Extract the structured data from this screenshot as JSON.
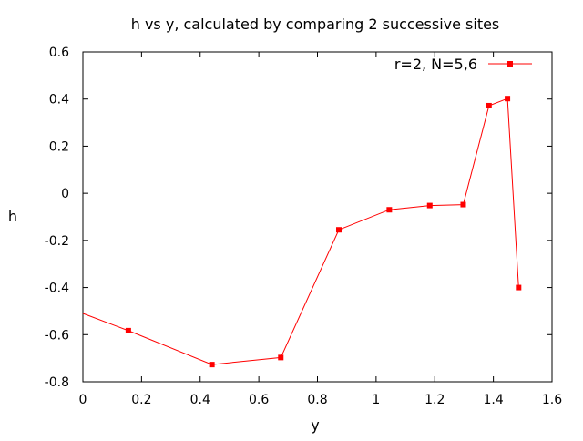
{
  "chart_data": {
    "type": "line",
    "title": "h vs y, calculated by comparing 2 successive sites",
    "xlabel": "y",
    "ylabel": "h",
    "xlim": [
      0,
      1.6
    ],
    "ylim": [
      -0.8,
      0.6
    ],
    "x_ticks": [
      0,
      0.2,
      0.4,
      0.6,
      0.8,
      1,
      1.2,
      1.4,
      1.6
    ],
    "x_tick_labels": [
      "0",
      "0.2",
      "0.4",
      "0.6",
      "0.8",
      "1",
      "1.2",
      "1.4",
      "1.6"
    ],
    "y_ticks": [
      -0.8,
      -0.6,
      -0.4,
      -0.2,
      0,
      0.2,
      0.4,
      0.6
    ],
    "y_tick_labels": [
      "-0.8",
      "-0.6",
      "-0.4",
      "-0.2",
      "0",
      "0.2",
      "0.4",
      "0.6"
    ],
    "grid": false,
    "legend_position": "top-right",
    "series": [
      {
        "name": "r=2, N=5,6",
        "color": "#ff0000",
        "marker": "filled-square",
        "points": [
          {
            "x": 0.0,
            "y": -0.51,
            "marker": false
          },
          {
            "x": 0.155,
            "y": -0.583,
            "marker": true
          },
          {
            "x": 0.44,
            "y": -0.727,
            "marker": true
          },
          {
            "x": 0.675,
            "y": -0.697,
            "marker": true
          },
          {
            "x": 0.873,
            "y": -0.155,
            "marker": true
          },
          {
            "x": 1.045,
            "y": -0.07,
            "marker": true
          },
          {
            "x": 1.183,
            "y": -0.052,
            "marker": true
          },
          {
            "x": 1.297,
            "y": -0.048,
            "marker": true
          },
          {
            "x": 1.385,
            "y": 0.372,
            "marker": true
          },
          {
            "x": 1.448,
            "y": 0.402,
            "marker": true
          },
          {
            "x": 1.486,
            "y": -0.4,
            "marker": true
          }
        ]
      }
    ]
  }
}
